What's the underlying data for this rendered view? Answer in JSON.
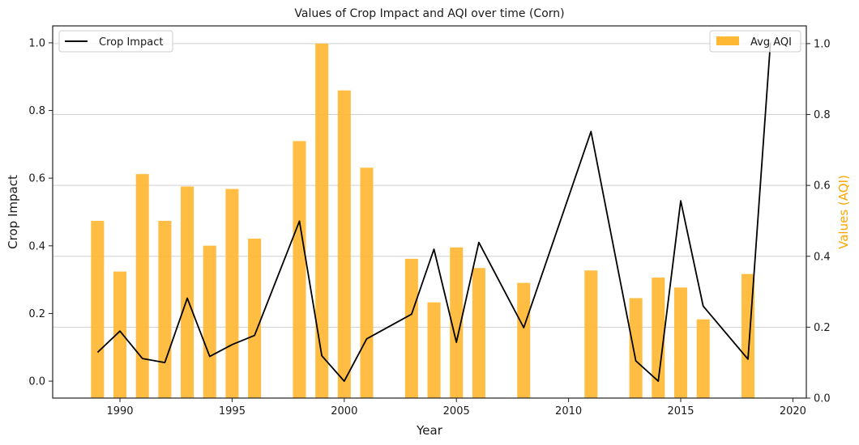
{
  "chart_data": {
    "type": "bar+line",
    "title": "Values of Crop Impact and AQI over time (Corn)",
    "xlabel": "Year",
    "ylabel_left": "Crop Impact",
    "ylabel_right": "Values (AQI)",
    "xlim": [
      1987,
      2020.6
    ],
    "ylim_left": [
      -0.05,
      1.05
    ],
    "ylim_right": [
      0.0,
      1.05
    ],
    "x_ticks": [
      1990,
      1995,
      2000,
      2005,
      2010,
      2015,
      2020
    ],
    "y_ticks_left": [
      0.0,
      0.2,
      0.4,
      0.6,
      0.8,
      1.0
    ],
    "y_ticks_right": [
      0.0,
      0.2,
      0.4,
      0.6,
      0.8,
      1.0
    ],
    "grid": "horizontal",
    "legend_line_position": "top-left",
    "legend_bar_position": "top-right",
    "colors": {
      "line": "#000000",
      "bar": "#ffb833",
      "right_axis_label": "#ffa500"
    },
    "line_series": {
      "name": "Crop Impact",
      "x": [
        1989,
        1990,
        1991,
        1992,
        1993,
        1994,
        1995,
        1996,
        1998,
        1999,
        2000,
        2001,
        2003,
        2004,
        2005,
        2006,
        2008,
        2011,
        2013,
        2014,
        2015,
        2016,
        2018,
        2019
      ],
      "y": [
        0.085,
        0.148,
        0.067,
        0.055,
        0.245,
        0.073,
        0.108,
        0.135,
        0.473,
        0.075,
        0.0,
        0.125,
        0.198,
        0.39,
        0.115,
        0.41,
        0.158,
        0.738,
        0.06,
        0.0,
        0.533,
        0.222,
        0.065,
        1.0
      ]
    },
    "bar_series": {
      "name": "Avg AQI",
      "x": [
        1989,
        1990,
        1991,
        1992,
        1993,
        1994,
        1995,
        1996,
        1998,
        1999,
        2000,
        2001,
        2003,
        2004,
        2005,
        2006,
        2008,
        2011,
        2013,
        2014,
        2015,
        2016,
        2018
      ],
      "values": [
        0.5,
        0.357,
        0.632,
        0.5,
        0.597,
        0.43,
        0.59,
        0.45,
        0.725,
        1.0,
        0.868,
        0.65,
        0.393,
        0.27,
        0.425,
        0.367,
        0.325,
        0.36,
        0.282,
        0.34,
        0.312,
        0.222,
        0.35
      ]
    }
  }
}
